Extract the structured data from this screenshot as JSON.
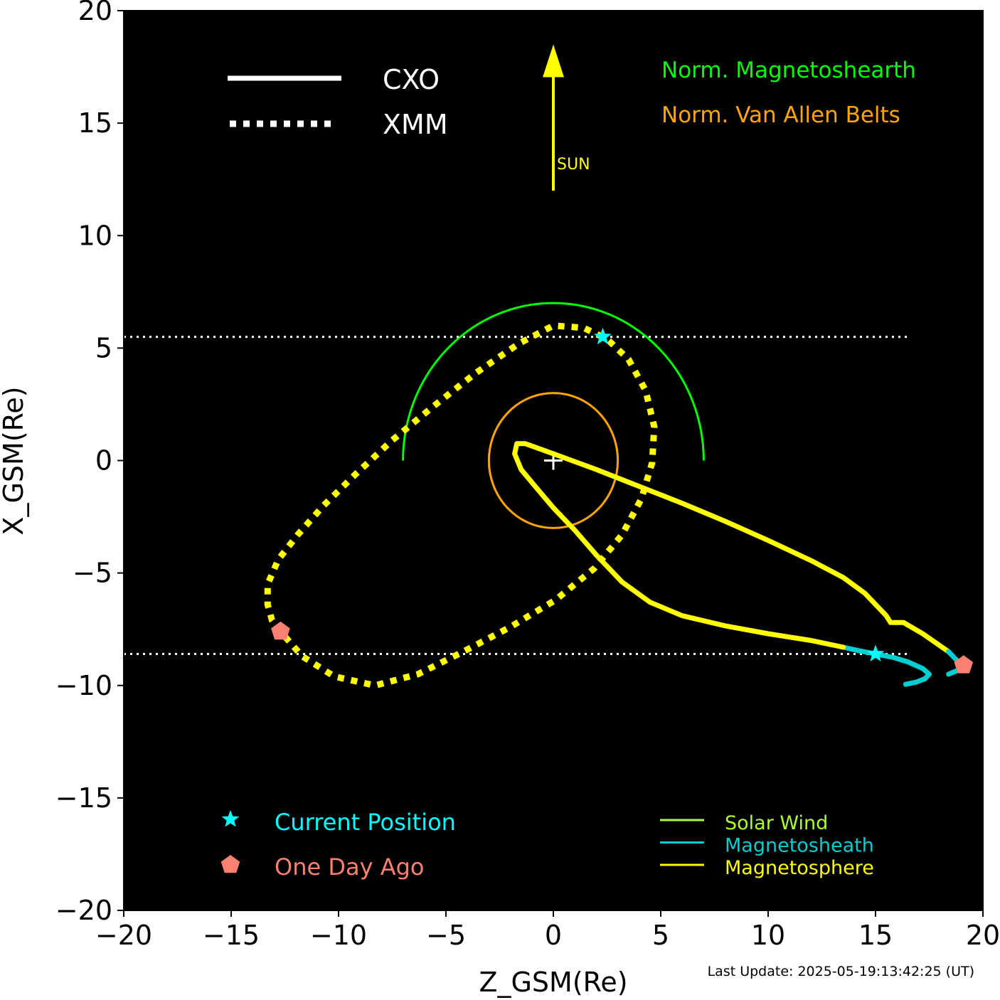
{
  "chart_data": {
    "type": "line",
    "xlabel": "Z_GSM(Re)",
    "ylabel": "X_GSM(Re)",
    "xlim": [
      -20,
      20
    ],
    "ylim": [
      -20,
      20
    ],
    "x_ticks": [
      -20,
      -15,
      -10,
      -5,
      0,
      5,
      10,
      15,
      20
    ],
    "y_ticks": [
      -20,
      -15,
      -10,
      -5,
      0,
      5,
      10,
      15,
      20
    ],
    "x_tick_labels": [
      "−20",
      "−15",
      "−10",
      "−5",
      "0",
      "5",
      "10",
      "15",
      "20"
    ],
    "y_tick_labels": [
      "−20",
      "−15",
      "−10",
      "−5",
      "0",
      "5",
      "10",
      "15",
      "20"
    ],
    "background_color": "#000000",
    "footer": "Last Update: 2025-05-19:13:42:25 (UT)",
    "sun_arrow": {
      "label": "SUN",
      "x": 0,
      "y_from": 12,
      "y_to": 18.5,
      "color": "#ffff00"
    },
    "reference_circles": [
      {
        "label": "Norm. Magnetoshearth",
        "radius": 7,
        "half": true,
        "color": "#00ff00"
      },
      {
        "label": "Norm. Van Allen Belts",
        "radius": 3,
        "half": false,
        "color": "#ffa500"
      }
    ],
    "line_style_legend": [
      {
        "label": "CXO",
        "style": "solid"
      },
      {
        "label": "XMM",
        "style": "dotted"
      }
    ],
    "marker_legend": [
      {
        "label": "Current Position",
        "marker": "star",
        "color": "#00ffff"
      },
      {
        "label": "One Day Ago",
        "marker": "pentagon",
        "color": "#fa8072"
      }
    ],
    "region_legend": [
      {
        "label": "Solar Wind",
        "color": "#adff2f"
      },
      {
        "label": "Magnetosheath",
        "color": "#00ced1"
      },
      {
        "label": "Magnetosphere",
        "color": "#ffff00"
      }
    ],
    "current_position_lines": [
      5.5,
      -8.6
    ],
    "series": [
      {
        "name": "CXO",
        "style": "solid",
        "segments": [
          {
            "region": "Magnetosheath",
            "points": [
              [
                16.4,
                -9.95
              ],
              [
                16.9,
                -9.85
              ],
              [
                17.3,
                -9.7
              ],
              [
                17.5,
                -9.5
              ],
              [
                17.2,
                -9.25
              ],
              [
                16.5,
                -8.95
              ],
              [
                15.8,
                -8.75
              ],
              [
                15.0,
                -8.6
              ],
              [
                14.2,
                -8.45
              ],
              [
                13.5,
                -8.3
              ]
            ]
          },
          {
            "region": "Magnetosphere",
            "points": [
              [
                13.5,
                -8.3
              ],
              [
                12.0,
                -8.0
              ],
              [
                10.0,
                -7.7
              ],
              [
                8.0,
                -7.35
              ],
              [
                6.0,
                -6.9
              ],
              [
                4.5,
                -6.3
              ],
              [
                3.2,
                -5.4
              ],
              [
                2.0,
                -4.2
              ],
              [
                1.0,
                -3.1
              ],
              [
                0.0,
                -2.1
              ],
              [
                -0.8,
                -1.2
              ],
              [
                -1.5,
                -0.4
              ],
              [
                -1.8,
                0.3
              ],
              [
                -1.7,
                0.75
              ],
              [
                -1.3,
                0.75
              ],
              [
                0.0,
                0.3
              ],
              [
                2.0,
                -0.4
              ],
              [
                4.0,
                -1.15
              ],
              [
                6.0,
                -1.9
              ],
              [
                8.0,
                -2.7
              ],
              [
                10.0,
                -3.55
              ],
              [
                12.0,
                -4.45
              ],
              [
                13.5,
                -5.2
              ],
              [
                14.5,
                -5.9
              ],
              [
                15.5,
                -6.9
              ],
              [
                15.7,
                -7.2
              ],
              [
                16.3,
                -7.2
              ],
              [
                17.2,
                -7.7
              ],
              [
                18.4,
                -8.5
              ]
            ]
          },
          {
            "region": "Magnetosheath",
            "points": [
              [
                18.4,
                -8.5
              ],
              [
                18.8,
                -8.9
              ],
              [
                19.1,
                -9.1
              ],
              [
                18.9,
                -9.3
              ],
              [
                18.4,
                -9.5
              ]
            ]
          }
        ]
      },
      {
        "name": "XMM",
        "style": "dotted",
        "segments": [
          {
            "region": "Magnetosphere",
            "points": [
              [
                -12.7,
                -7.6
              ],
              [
                -13.1,
                -7.1
              ],
              [
                -13.3,
                -6.4
              ],
              [
                -13.3,
                -5.5
              ],
              [
                -12.8,
                -4.4
              ],
              [
                -11.9,
                -3.3
              ],
              [
                -10.7,
                -2.0
              ],
              [
                -9.2,
                -0.6
              ],
              [
                -7.5,
                0.9
              ],
              [
                -5.6,
                2.4
              ],
              [
                -3.6,
                3.9
              ],
              [
                -1.6,
                5.2
              ],
              [
                0.0,
                6.0
              ],
              [
                1.4,
                5.9
              ],
              [
                2.5,
                5.4
              ],
              [
                3.5,
                4.5
              ],
              [
                4.3,
                3.1
              ],
              [
                4.7,
                1.5
              ],
              [
                4.6,
                -0.1
              ],
              [
                4.1,
                -1.7
              ],
              [
                3.2,
                -3.3
              ],
              [
                1.9,
                -4.8
              ],
              [
                0.1,
                -6.2
              ],
              [
                -2.0,
                -7.4
              ],
              [
                -4.2,
                -8.5
              ],
              [
                -6.3,
                -9.5
              ],
              [
                -8.3,
                -10.0
              ],
              [
                -10.2,
                -9.6
              ],
              [
                -11.7,
                -8.7
              ],
              [
                -12.7,
                -7.6
              ]
            ]
          }
        ]
      }
    ],
    "markers": [
      {
        "series": "CXO",
        "type": "current",
        "x": 15.0,
        "y": -8.6
      },
      {
        "series": "CXO",
        "type": "one_day_ago",
        "x": 19.1,
        "y": -9.1
      },
      {
        "series": "XMM",
        "type": "current",
        "x": 2.3,
        "y": 5.5
      },
      {
        "series": "XMM",
        "type": "one_day_ago",
        "x": -12.7,
        "y": -7.6
      }
    ],
    "origin_marker": {
      "x": 0,
      "y": 0,
      "symbol": "+"
    }
  }
}
